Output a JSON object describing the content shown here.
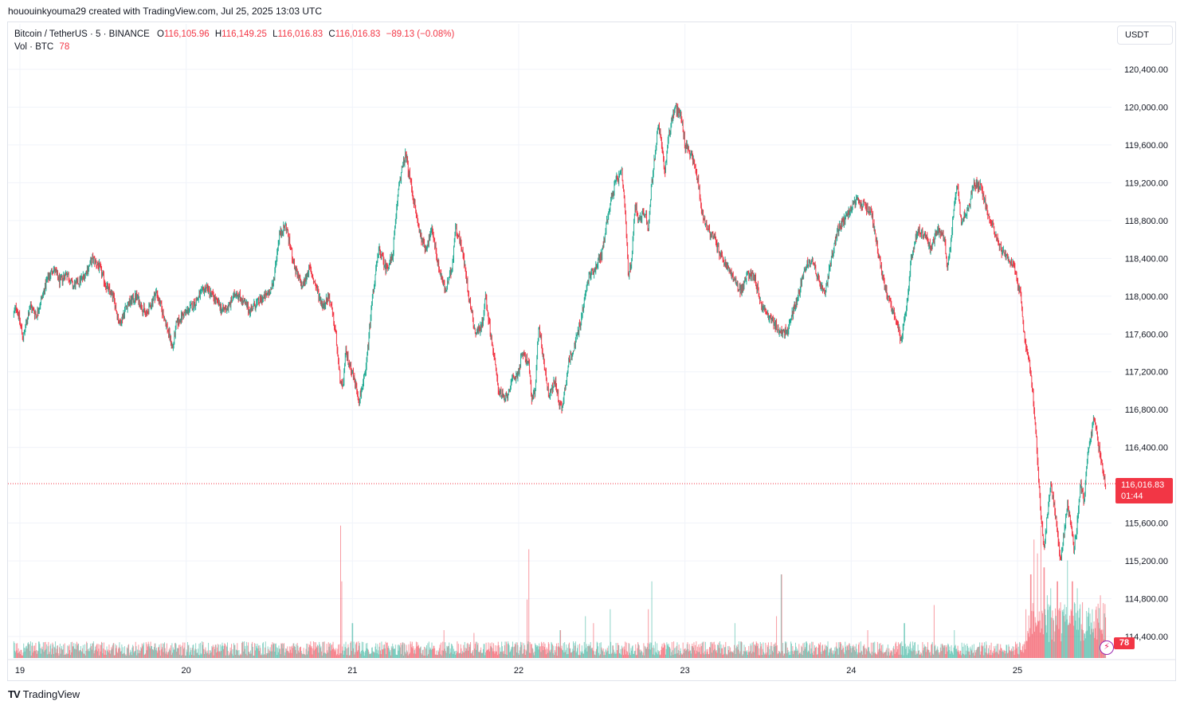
{
  "caption": "hououinkyouma29 created with TradingView.com, Jul 25, 2025 13:03 UTC",
  "legend": {
    "symbol": "Bitcoin / TetherUS · 5 · BINANCE",
    "o_label": "O",
    "o_value": "116,105.96",
    "h_label": "H",
    "h_value": "116,149.25",
    "l_label": "L",
    "l_value": "116,016.83",
    "c_label": "C",
    "c_value": "116,016.83",
    "change": "−89.13 (−0.08%)",
    "vol_label": "Vol · BTC",
    "vol_value": "78"
  },
  "currency_button": "USDT",
  "price_tag": {
    "price": "116,016.83",
    "countdown": "01:44"
  },
  "volume_tag": "78",
  "brand": {
    "logo": "TV",
    "name": "TradingView"
  },
  "colors": {
    "up": "#22ab94",
    "down": "#f23645",
    "grid": "#f0f3fa",
    "text": "#131722",
    "axis_text": "#131722"
  },
  "chart_data": {
    "type": "candlestick",
    "symbol": "BTCUSDT",
    "interval": "5",
    "y_ticks": [
      "120,400.00",
      "120,000.00",
      "119,600.00",
      "119,200.00",
      "118,800.00",
      "118,400.00",
      "118,000.00",
      "117,600.00",
      "117,200.00",
      "116,800.00",
      "116,400.00",
      "115,600.00",
      "115,200.00",
      "114,800.00",
      "114,400.00"
    ],
    "x_ticks": [
      "19",
      "20",
      "21",
      "22",
      "23",
      "24",
      "25"
    ],
    "ylim": [
      114250,
      120700
    ],
    "current_price": 116016.83,
    "x_range_days": [
      18.96,
      25.55
    ],
    "path": [
      [
        18.96,
        117800
      ],
      [
        18.98,
        117900
      ],
      [
        19.02,
        117550
      ],
      [
        19.06,
        117900
      ],
      [
        19.1,
        117800
      ],
      [
        19.16,
        118150
      ],
      [
        19.2,
        118300
      ],
      [
        19.24,
        118150
      ],
      [
        19.28,
        118250
      ],
      [
        19.32,
        118100
      ],
      [
        19.38,
        118200
      ],
      [
        19.44,
        118400
      ],
      [
        19.48,
        118300
      ],
      [
        19.52,
        118100
      ],
      [
        19.56,
        118000
      ],
      [
        19.6,
        117700
      ],
      [
        19.64,
        117900
      ],
      [
        19.7,
        118000
      ],
      [
        19.76,
        117800
      ],
      [
        19.82,
        118050
      ],
      [
        19.88,
        117700
      ],
      [
        19.92,
        117450
      ],
      [
        19.94,
        117700
      ],
      [
        19.98,
        117800
      ],
      [
        20.04,
        117900
      ],
      [
        20.08,
        118000
      ],
      [
        20.12,
        118100
      ],
      [
        20.16,
        118000
      ],
      [
        20.22,
        117850
      ],
      [
        20.26,
        117900
      ],
      [
        20.3,
        118050
      ],
      [
        20.34,
        117950
      ],
      [
        20.38,
        117850
      ],
      [
        20.44,
        117950
      ],
      [
        20.48,
        118000
      ],
      [
        20.52,
        118100
      ],
      [
        20.56,
        118650
      ],
      [
        20.6,
        118750
      ],
      [
        20.64,
        118400
      ],
      [
        20.66,
        118250
      ],
      [
        20.7,
        118100
      ],
      [
        20.74,
        118300
      ],
      [
        20.78,
        118100
      ],
      [
        20.82,
        117900
      ],
      [
        20.86,
        118000
      ],
      [
        20.9,
        117600
      ],
      [
        20.92,
        117200
      ],
      [
        20.94,
        117000
      ],
      [
        20.96,
        117400
      ],
      [
        21.0,
        117200
      ],
      [
        21.04,
        116900
      ],
      [
        21.08,
        117200
      ],
      [
        21.12,
        118000
      ],
      [
        21.16,
        118500
      ],
      [
        21.2,
        118300
      ],
      [
        21.24,
        118400
      ],
      [
        21.28,
        119200
      ],
      [
        21.32,
        119500
      ],
      [
        21.36,
        119100
      ],
      [
        21.4,
        118700
      ],
      [
        21.44,
        118500
      ],
      [
        21.48,
        118700
      ],
      [
        21.52,
        118300
      ],
      [
        21.56,
        118050
      ],
      [
        21.6,
        118300
      ],
      [
        21.62,
        118750
      ],
      [
        21.66,
        118500
      ],
      [
        21.7,
        118000
      ],
      [
        21.74,
        117600
      ],
      [
        21.78,
        117700
      ],
      [
        21.8,
        118000
      ],
      [
        21.84,
        117500
      ],
      [
        21.88,
        117000
      ],
      [
        21.92,
        116900
      ],
      [
        21.96,
        117100
      ],
      [
        22.0,
        117200
      ],
      [
        22.02,
        117400
      ],
      [
        22.06,
        117300
      ],
      [
        22.08,
        116900
      ],
      [
        22.1,
        117000
      ],
      [
        22.12,
        117700
      ],
      [
        22.16,
        117200
      ],
      [
        22.18,
        116950
      ],
      [
        22.22,
        117100
      ],
      [
        22.24,
        116900
      ],
      [
        22.26,
        116800
      ],
      [
        22.3,
        117300
      ],
      [
        22.34,
        117500
      ],
      [
        22.38,
        117800
      ],
      [
        22.42,
        118200
      ],
      [
        22.46,
        118300
      ],
      [
        22.5,
        118450
      ],
      [
        22.54,
        118900
      ],
      [
        22.58,
        119200
      ],
      [
        22.62,
        119300
      ],
      [
        22.64,
        118900
      ],
      [
        22.66,
        118200
      ],
      [
        22.68,
        118400
      ],
      [
        22.7,
        119000
      ],
      [
        22.72,
        118800
      ],
      [
        22.76,
        118900
      ],
      [
        22.78,
        118700
      ],
      [
        22.8,
        119200
      ],
      [
        22.84,
        119800
      ],
      [
        22.86,
        119600
      ],
      [
        22.88,
        119300
      ],
      [
        22.9,
        119700
      ],
      [
        22.94,
        120000
      ],
      [
        22.98,
        119900
      ],
      [
        23.0,
        119600
      ],
      [
        23.04,
        119500
      ],
      [
        23.08,
        119200
      ],
      [
        23.1,
        118900
      ],
      [
        23.14,
        118700
      ],
      [
        23.18,
        118600
      ],
      [
        23.22,
        118400
      ],
      [
        23.26,
        118300
      ],
      [
        23.3,
        118150
      ],
      [
        23.34,
        118050
      ],
      [
        23.38,
        118250
      ],
      [
        23.42,
        118200
      ],
      [
        23.46,
        117900
      ],
      [
        23.5,
        117800
      ],
      [
        23.54,
        117700
      ],
      [
        23.58,
        117600
      ],
      [
        23.62,
        117650
      ],
      [
        23.66,
        117900
      ],
      [
        23.68,
        118000
      ],
      [
        23.72,
        118300
      ],
      [
        23.76,
        118400
      ],
      [
        23.8,
        118200
      ],
      [
        23.84,
        118000
      ],
      [
        23.88,
        118400
      ],
      [
        23.92,
        118700
      ],
      [
        23.96,
        118800
      ],
      [
        24.0,
        118950
      ],
      [
        24.04,
        119000
      ],
      [
        24.08,
        118950
      ],
      [
        24.12,
        118900
      ],
      [
        24.16,
        118500
      ],
      [
        24.2,
        118100
      ],
      [
        24.24,
        117900
      ],
      [
        24.28,
        117700
      ],
      [
        24.3,
        117500
      ],
      [
        24.34,
        118000
      ],
      [
        24.36,
        118400
      ],
      [
        24.4,
        118700
      ],
      [
        24.44,
        118650
      ],
      [
        24.48,
        118500
      ],
      [
        24.52,
        118700
      ],
      [
        24.56,
        118600
      ],
      [
        24.58,
        118300
      ],
      [
        24.6,
        118600
      ],
      [
        24.62,
        119000
      ],
      [
        24.64,
        119200
      ],
      [
        24.66,
        118800
      ],
      [
        24.7,
        118900
      ],
      [
        24.74,
        119200
      ],
      [
        24.78,
        119150
      ],
      [
        24.82,
        118900
      ],
      [
        24.86,
        118700
      ],
      [
        24.9,
        118500
      ],
      [
        24.94,
        118400
      ],
      [
        24.98,
        118300
      ],
      [
        25.02,
        118000
      ],
      [
        25.04,
        117600
      ],
      [
        25.08,
        117200
      ],
      [
        25.1,
        116800
      ],
      [
        25.12,
        116300
      ],
      [
        25.14,
        115700
      ],
      [
        25.16,
        115300
      ],
      [
        25.18,
        115700
      ],
      [
        25.2,
        116000
      ],
      [
        25.22,
        115800
      ],
      [
        25.24,
        115500
      ],
      [
        25.26,
        115200
      ],
      [
        25.28,
        115500
      ],
      [
        25.3,
        115800
      ],
      [
        25.32,
        115600
      ],
      [
        25.34,
        115300
      ],
      [
        25.36,
        115600
      ],
      [
        25.38,
        116000
      ],
      [
        25.4,
        115800
      ],
      [
        25.42,
        116300
      ],
      [
        25.44,
        116500
      ],
      [
        25.46,
        116700
      ],
      [
        25.48,
        116500
      ],
      [
        25.5,
        116300
      ],
      [
        25.52,
        116100
      ],
      [
        25.53,
        116016
      ]
    ],
    "volume_spikes": [
      [
        20.93,
        0.95
      ],
      [
        20.935,
        0.55
      ],
      [
        21.0,
        0.25
      ],
      [
        21.55,
        0.2
      ],
      [
        21.73,
        0.18
      ],
      [
        22.05,
        0.42
      ],
      [
        22.06,
        0.78
      ],
      [
        22.4,
        0.3
      ],
      [
        22.55,
        0.35
      ],
      [
        22.8,
        0.55
      ],
      [
        22.78,
        0.35
      ],
      [
        22.25,
        0.2
      ],
      [
        22.45,
        0.25
      ],
      [
        23.55,
        0.3
      ],
      [
        23.58,
        0.6
      ],
      [
        23.3,
        0.25
      ],
      [
        24.1,
        0.2
      ],
      [
        24.32,
        0.25
      ],
      [
        24.5,
        0.38
      ],
      [
        24.62,
        0.2
      ],
      [
        25.05,
        0.35
      ],
      [
        25.08,
        0.6
      ],
      [
        25.1,
        0.85
      ],
      [
        25.12,
        0.75
      ],
      [
        25.14,
        0.95
      ],
      [
        25.16,
        0.65
      ],
      [
        25.18,
        0.45
      ],
      [
        25.2,
        0.5
      ],
      [
        25.24,
        0.55
      ],
      [
        25.26,
        0.4
      ],
      [
        25.3,
        0.7
      ],
      [
        25.33,
        0.55
      ],
      [
        25.36,
        0.5
      ],
      [
        25.39,
        0.4
      ],
      [
        25.45,
        0.35
      ],
      [
        25.5,
        0.45
      ]
    ]
  }
}
